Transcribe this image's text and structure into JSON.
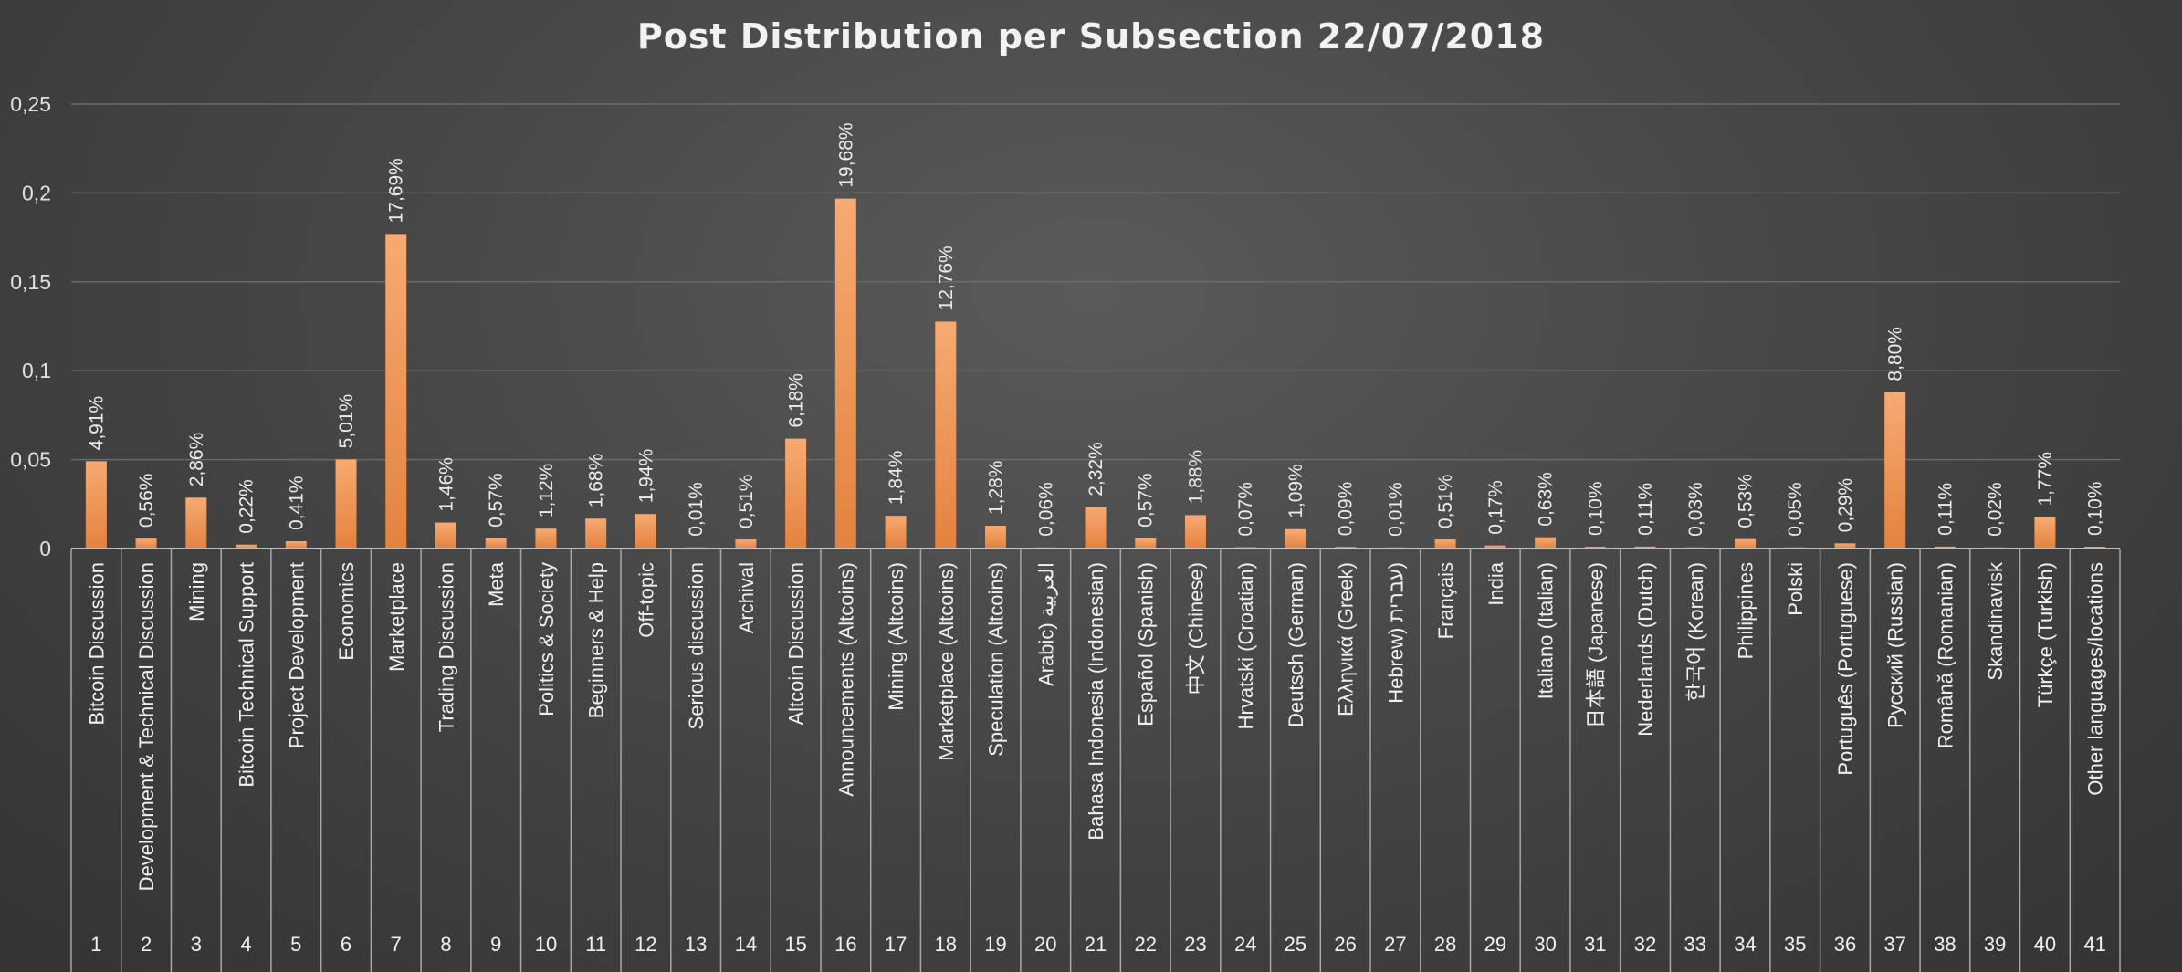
{
  "chart_data": {
    "type": "bar",
    "title": "Post Distribution per Subsection 22/07/2018",
    "xlabel": "",
    "ylabel": "",
    "ylim": [
      0,
      0.25
    ],
    "yticks": [
      "0",
      "0,05",
      "0,1",
      "0,15",
      "0,2",
      "0,25"
    ],
    "grid": true,
    "legend": "none",
    "colors": {
      "bar": "#f4a064",
      "bar_dark": "#e07d3c",
      "background": "#474747"
    },
    "categories": [
      {
        "index": "1",
        "name": "Bitcoin Discussion",
        "label": "4,91%"
      },
      {
        "index": "2",
        "name": "Development & Technical Discussion",
        "label": "0,56%"
      },
      {
        "index": "3",
        "name": "Mining",
        "label": "2,86%"
      },
      {
        "index": "4",
        "name": "Bitcoin Technical Support",
        "label": "0,22%"
      },
      {
        "index": "5",
        "name": "Project Development",
        "label": "0,41%"
      },
      {
        "index": "6",
        "name": "Economics",
        "label": "5,01%"
      },
      {
        "index": "7",
        "name": "Marketplace",
        "label": "17,69%"
      },
      {
        "index": "8",
        "name": "Trading Discussion",
        "label": "1,46%"
      },
      {
        "index": "9",
        "name": "Meta",
        "label": "0,57%"
      },
      {
        "index": "10",
        "name": "Politics & Society",
        "label": "1,12%"
      },
      {
        "index": "11",
        "name": "Beginners & Help",
        "label": "1,68%"
      },
      {
        "index": "12",
        "name": "Off-topic",
        "label": "1,94%"
      },
      {
        "index": "13",
        "name": "Serious discussion",
        "label": "0,01%"
      },
      {
        "index": "14",
        "name": "Archival",
        "label": "0,51%"
      },
      {
        "index": "15",
        "name": "Altcoin Discussion",
        "label": "6,18%"
      },
      {
        "index": "16",
        "name": "Announcements (Altcoins)",
        "label": "19,68%"
      },
      {
        "index": "17",
        "name": "Mining (Altcoins)",
        "label": "1,84%"
      },
      {
        "index": "18",
        "name": "Marketplace (Altcoins)",
        "label": "12,76%"
      },
      {
        "index": "19",
        "name": "Speculation (Altcoins)",
        "label": "1,28%"
      },
      {
        "index": "20",
        "name": "Arabic) العربية",
        "label": "0,06%"
      },
      {
        "index": "21",
        "name": "Bahasa Indonesia (Indonesian)",
        "label": "2,32%"
      },
      {
        "index": "22",
        "name": "Español (Spanish)",
        "label": "0,57%"
      },
      {
        "index": "23",
        "name": "中文 (Chinese)",
        "label": "1,88%"
      },
      {
        "index": "24",
        "name": "Hrvatski (Croatian)",
        "label": "0,07%"
      },
      {
        "index": "25",
        "name": "Deutsch (German)",
        "label": "1,09%"
      },
      {
        "index": "26",
        "name": "Ελληνικά (Greek)",
        "label": "0,09%"
      },
      {
        "index": "27",
        "name": "Hebrew) עברית)",
        "label": "0,01%"
      },
      {
        "index": "28",
        "name": "Français",
        "label": "0,51%"
      },
      {
        "index": "29",
        "name": "India",
        "label": "0,17%"
      },
      {
        "index": "30",
        "name": "Italiano (Italian)",
        "label": "0,63%"
      },
      {
        "index": "31",
        "name": "日本語 (Japanese)",
        "label": "0,10%"
      },
      {
        "index": "32",
        "name": "Nederlands (Dutch)",
        "label": "0,11%"
      },
      {
        "index": "33",
        "name": "한국어 (Korean)",
        "label": "0,03%"
      },
      {
        "index": "34",
        "name": "Philippines",
        "label": "0,53%"
      },
      {
        "index": "35",
        "name": "Polski",
        "label": "0,05%"
      },
      {
        "index": "36",
        "name": "Português (Portuguese)",
        "label": "0,29%"
      },
      {
        "index": "37",
        "name": "Русский (Russian)",
        "label": "8,80%"
      },
      {
        "index": "38",
        "name": "Română (Romanian)",
        "label": "0,11%"
      },
      {
        "index": "39",
        "name": "Skandinavisk",
        "label": "0,02%"
      },
      {
        "index": "40",
        "name": "Türkçe (Turkish)",
        "label": "1,77%"
      },
      {
        "index": "41",
        "name": "Other languages/locations",
        "label": "0,10%"
      }
    ],
    "values": [
      0.0491,
      0.0056,
      0.0286,
      0.0022,
      0.0041,
      0.0501,
      0.1769,
      0.0146,
      0.0057,
      0.0112,
      0.0168,
      0.0194,
      0.0001,
      0.0051,
      0.0618,
      0.1968,
      0.0184,
      0.1276,
      0.0128,
      0.0006,
      0.0232,
      0.0057,
      0.0188,
      0.0007,
      0.0109,
      0.0009,
      0.0001,
      0.0051,
      0.0017,
      0.0063,
      0.001,
      0.0011,
      0.0003,
      0.0053,
      0.0005,
      0.0029,
      0.088,
      0.0011,
      0.0002,
      0.0177,
      0.001
    ]
  }
}
